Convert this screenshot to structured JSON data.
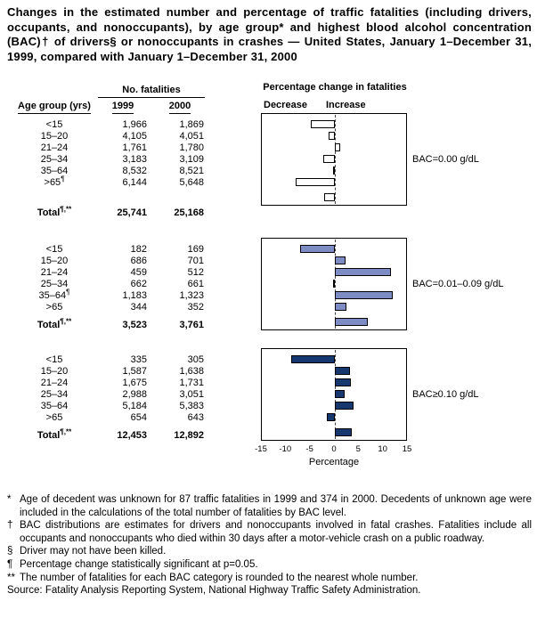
{
  "title": "Changes in the estimated number and percentage of traffic fatalities (including drivers, occupants, and nonoccupants), by age group* and highest blood alcohol concentration (BAC)† of drivers§ or nonoccupants in crashes — United States, January 1–December 31, 1999, compared with January 1–December 31, 2000",
  "table": {
    "header": {
      "fatalities_label": "No. fatalities",
      "age_label": "Age group (yrs)",
      "col_1999": "1999",
      "col_2000": "2000"
    },
    "groups": [
      {
        "rows": [
          {
            "age": "<15",
            "sup": "",
            "v1999": "1,966",
            "v2000": "1,869"
          },
          {
            "age": "15–20",
            "sup": "",
            "v1999": "4,105",
            "v2000": "4,051"
          },
          {
            "age": "21–24",
            "sup": "",
            "v1999": "1,761",
            "v2000": "1,780"
          },
          {
            "age": "25–34",
            "sup": "",
            "v1999": "3,183",
            "v2000": "3,109"
          },
          {
            "age": "35–64",
            "sup": "",
            "v1999": "8,532",
            "v2000": "8,521"
          },
          {
            "age": ">65",
            "sup": "¶",
            "v1999": "6,144",
            "v2000": "5,648"
          }
        ],
        "total": {
          "age": "Total",
          "sup": "¶,**",
          "v1999": "25,741",
          "v2000": "25,168"
        }
      },
      {
        "rows": [
          {
            "age": "<15",
            "sup": "",
            "v1999": "182",
            "v2000": "169"
          },
          {
            "age": "15–20",
            "sup": "",
            "v1999": "686",
            "v2000": "701"
          },
          {
            "age": "21–24",
            "sup": "",
            "v1999": "459",
            "v2000": "512"
          },
          {
            "age": "25–34",
            "sup": "",
            "v1999": "662",
            "v2000": "661"
          },
          {
            "age": "35–64",
            "sup": "¶",
            "v1999": "1,183",
            "v2000": "1,323"
          },
          {
            "age": ">65",
            "sup": "",
            "v1999": "344",
            "v2000": "352"
          }
        ],
        "total": {
          "age": "Total",
          "sup": "¶,**",
          "v1999": "3,523",
          "v2000": "3,761"
        }
      },
      {
        "rows": [
          {
            "age": "<15",
            "sup": "",
            "v1999": "335",
            "v2000": "305"
          },
          {
            "age": "15–20",
            "sup": "",
            "v1999": "1,587",
            "v2000": "1,638"
          },
          {
            "age": "21–24",
            "sup": "",
            "v1999": "1,675",
            "v2000": "1,731"
          },
          {
            "age": "25–34",
            "sup": "",
            "v1999": "2,988",
            "v2000": "3,051"
          },
          {
            "age": "35–64",
            "sup": "",
            "v1999": "5,184",
            "v2000": "5,383"
          },
          {
            "age": ">65",
            "sup": "",
            "v1999": "654",
            "v2000": "643"
          }
        ],
        "total": {
          "age": "Total",
          "sup": "¶,**",
          "v1999": "12,453",
          "v2000": "12,892"
        }
      }
    ]
  },
  "chart_header": {
    "title": "Percentage change in fatalities",
    "decrease_label": "Decrease",
    "increase_label": "Increase"
  },
  "chart_data": [
    {
      "type": "bar",
      "orientation": "horizontal",
      "bac_label": "BAC=0.00 g/dL",
      "categories": [
        "<15",
        "15–20",
        "21–24",
        "25–34",
        "35–64",
        ">65",
        "Total"
      ],
      "values": [
        -4.9,
        -1.3,
        1.1,
        -2.3,
        -0.1,
        -8.1,
        -2.2
      ],
      "bar_color": "#ffffff",
      "xlim": [
        -15,
        15
      ],
      "xlabel": "Percentage"
    },
    {
      "type": "bar",
      "orientation": "horizontal",
      "bac_label": "BAC=0.01–0.09 g/dL",
      "categories": [
        "<15",
        "15–20",
        "21–24",
        "25–34",
        "35–64",
        ">65",
        "Total"
      ],
      "values": [
        -7.1,
        2.2,
        11.5,
        -0.2,
        11.8,
        2.3,
        6.8
      ],
      "bar_color": "#7d8cc2",
      "xlim": [
        -15,
        15
      ],
      "xlabel": "Percentage"
    },
    {
      "type": "bar",
      "orientation": "horizontal",
      "bac_label": "BAC≥0.10 g/dL",
      "categories": [
        "<15",
        "15–20",
        "21–24",
        "25–34",
        "35–64",
        ">65",
        "Total"
      ],
      "values": [
        -9.0,
        3.2,
        3.3,
        2.1,
        3.8,
        -1.7,
        3.5
      ],
      "bar_color": "#17386e",
      "xlim": [
        -15,
        15
      ],
      "xlabel": "Percentage"
    }
  ],
  "axis": {
    "ticks": [
      -15,
      -10,
      -5,
      0,
      5,
      10,
      15
    ],
    "xlabel": "Percentage"
  },
  "footnotes": [
    {
      "marker": "*",
      "text": "Age of decedent was unknown for 87 traffic fatalities in 1999 and 374 in 2000. Decedents of unknown age were included in the calculations of the total number of fatalities by BAC level."
    },
    {
      "marker": "†",
      "text": "BAC distributions are estimates for drivers and nonoccupants involved in fatal crashes. Fatalities include all occupants and nonoccupants who died within 30 days after a motor-vehicle crash on a public roadway."
    },
    {
      "marker": "§",
      "text": "Driver may not have been killed."
    },
    {
      "marker": "¶",
      "text": "Percentage change statistically significant at p=0.05."
    },
    {
      "marker": "**",
      "text": "The number of fatalities for each BAC category is rounded to the nearest whole number."
    },
    {
      "marker": "",
      "text": "Source: Fatality Analysis Reporting System, National Highway Traffic Safety Administration."
    }
  ],
  "colors": {
    "bar_bac_000": "#ffffff",
    "bar_bac_001_009": "#7d8cc2",
    "bar_bac_010": "#17386e",
    "text": "#000000",
    "border": "#000000"
  }
}
